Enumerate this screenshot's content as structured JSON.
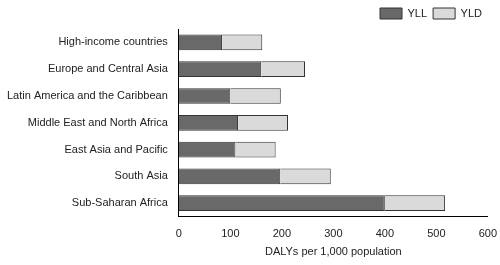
{
  "chart_data": {
    "type": "bar",
    "orientation": "horizontal",
    "stacked": true,
    "x_label": "DALYs per 1,000 population",
    "categories": [
      "High-income countries",
      "Europe and Central Asia",
      "Latin America and the Caribbean",
      "Middle East and North Africa",
      "East Asia and Pacific",
      "South Asia",
      "Sub-Saharan Africa"
    ],
    "series": [
      {
        "name": "YLL",
        "color": "#696969",
        "values": [
          84,
          160,
          100,
          115,
          110,
          197,
          400
        ]
      },
      {
        "name": "YLD",
        "color": "#dadada",
        "values": [
          78,
          85,
          98,
          97,
          78,
          98,
          117
        ]
      }
    ],
    "xlim": [
      0,
      600
    ],
    "xticks": [
      0,
      100,
      200,
      300,
      400,
      500,
      600
    ],
    "grid": false,
    "legend": "upper right"
  }
}
